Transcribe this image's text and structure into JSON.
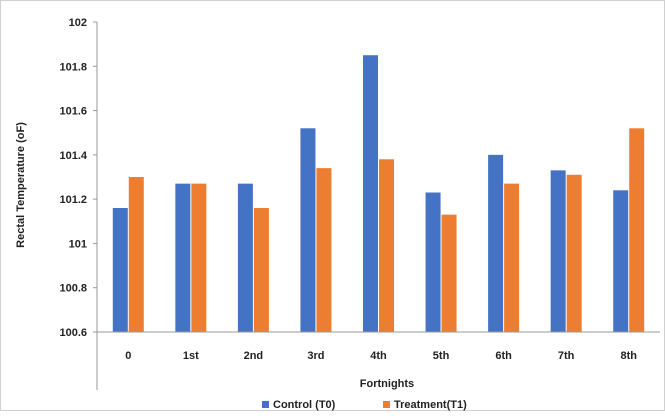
{
  "chart_data": {
    "type": "bar",
    "title": "",
    "xlabel": "Fortnights",
    "ylabel": "Rectal Temperature (oF)",
    "ylim": [
      100.6,
      102
    ],
    "yticks": [
      "100.6",
      "100.8",
      "101",
      "101.2",
      "101.4",
      "101.6",
      "101.8",
      "102"
    ],
    "categories": [
      "0",
      "1st",
      "2nd",
      "3rd",
      "4th",
      "5th",
      "6th",
      "7th",
      "8th"
    ],
    "series": [
      {
        "name": "Control (T0)",
        "color": "#4472C4",
        "values": [
          101.16,
          101.27,
          101.27,
          101.52,
          101.85,
          101.23,
          101.4,
          101.33,
          101.24
        ]
      },
      {
        "name": "Treatment(T1)",
        "color": "#ED7D31",
        "values": [
          101.3,
          101.27,
          101.16,
          101.34,
          101.38,
          101.13,
          101.27,
          101.31,
          101.52
        ]
      }
    ],
    "grid": false,
    "legend_position": "bottom"
  }
}
